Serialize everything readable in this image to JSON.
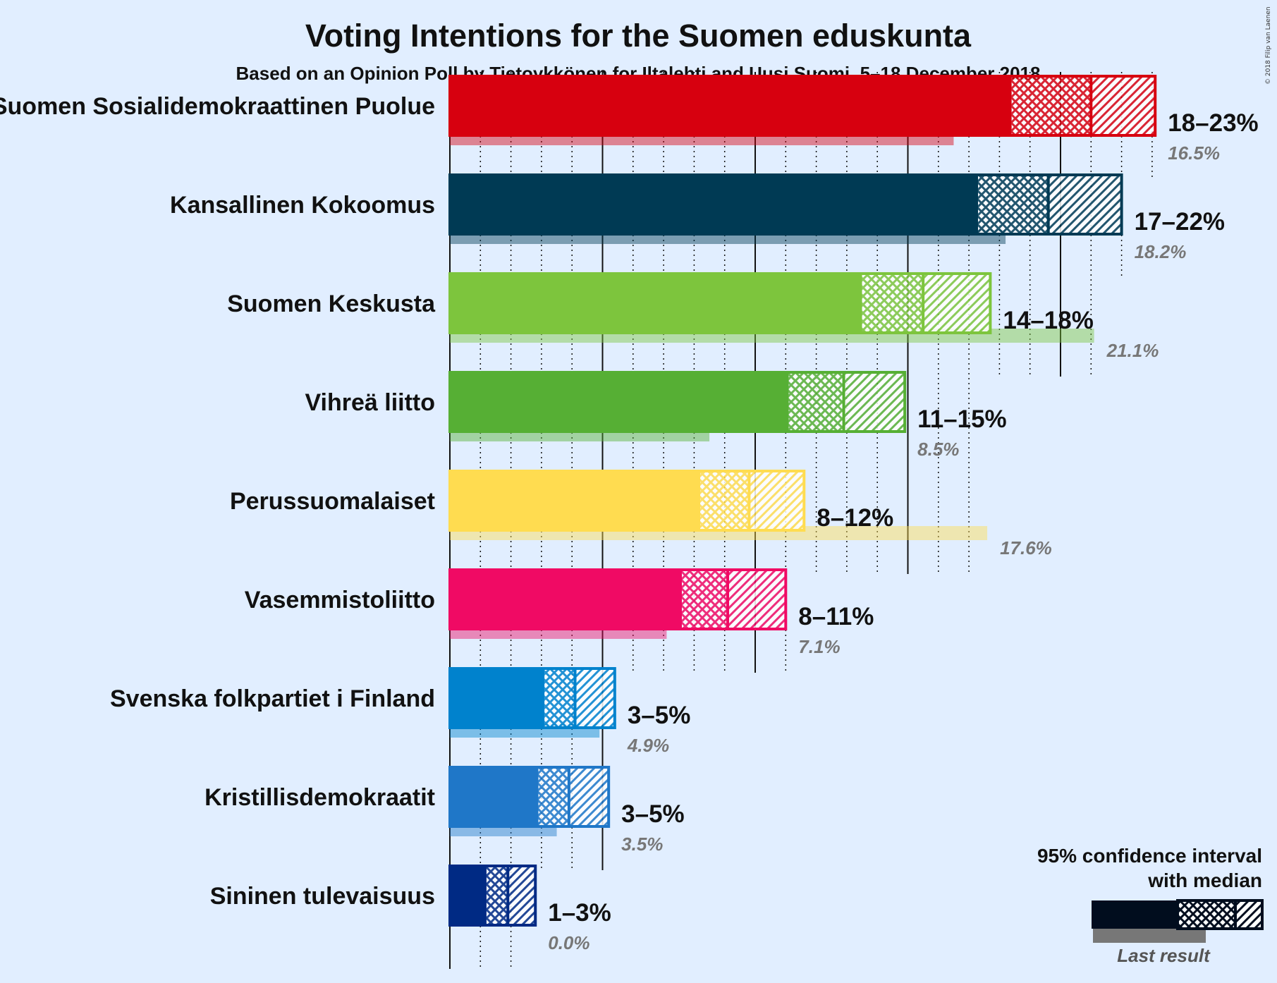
{
  "title": "Voting Intentions for the Suomen eduskunta",
  "subtitle": "Based on an Opinion Poll by Tietoykkönen for Iltalehti and Uusi Suomi, 5–18 December 2018",
  "copyright": "© 2018 Filip van Laenen",
  "legend": {
    "ci_line1": "95% confidence interval",
    "ci_line2": "with median",
    "last_result": "Last result"
  },
  "chart_data": {
    "type": "bar",
    "orientation": "horizontal",
    "unit": "%",
    "xlim": [
      0,
      24
    ],
    "grid": "vertical lines every 1% (dotted), solid every 5%",
    "legend_position": "bottom-right",
    "categories": [
      "Suomen Sosialidemokraattinen Puolue",
      "Kansallinen Kokoomus",
      "Suomen Keskusta",
      "Vihreä liitto",
      "Perussuomalaiset",
      "Vasemmistoliitto",
      "Svenska folkpartiet i Finland",
      "Kristillisdemokraatit",
      "Sininen tulevaisuus"
    ],
    "parties": [
      {
        "name": "Suomen Sosialidemokraattinen Puolue",
        "range_label": "18–23%",
        "last_label": "16.5%",
        "low": 18.4,
        "ci80_low": 20.6,
        "median": 21.0,
        "ci80_high": 23.0,
        "high": 23.1,
        "last": 16.5,
        "color": "#d7000f"
      },
      {
        "name": "Kansallinen Kokoomus",
        "range_label": "17–22%",
        "last_label": "18.2%",
        "low": 17.3,
        "ci80_low": 19.5,
        "median": 19.6,
        "ci80_high": 21.8,
        "high": 22.0,
        "last": 18.2,
        "color": "#003a54"
      },
      {
        "name": "Suomen Keskusta",
        "range_label": "14–18%",
        "last_label": "21.1%",
        "low": 13.5,
        "ci80_low": 15.3,
        "median": 15.5,
        "ci80_high": 17.6,
        "high": 17.7,
        "last": 21.1,
        "color": "#7dc53d"
      },
      {
        "name": "Vihreä liitto",
        "range_label": "11–15%",
        "last_label": "8.5%",
        "low": 11.1,
        "ci80_low": 12.8,
        "median": 12.9,
        "ci80_high": 14.8,
        "high": 14.9,
        "last": 8.5,
        "color": "#56af34"
      },
      {
        "name": "Perussuomalaiset",
        "range_label": "8–12%",
        "last_label": "17.6%",
        "low": 8.2,
        "ci80_low": 9.8,
        "median": 9.8,
        "ci80_high": 11.5,
        "high": 11.6,
        "last": 17.6,
        "color": "#ffdc50"
      },
      {
        "name": "Vasemmistoliitto",
        "range_label": "8–11%",
        "last_label": "7.1%",
        "low": 7.6,
        "ci80_low": 9.0,
        "median": 9.1,
        "ci80_high": 10.8,
        "high": 11.0,
        "last": 7.1,
        "color": "#f00a64"
      },
      {
        "name": "Svenska folkpartiet i Finland",
        "range_label": "3–5%",
        "last_label": "4.9%",
        "low": 3.1,
        "ci80_low": 4.0,
        "median": 4.1,
        "ci80_high": 5.3,
        "high": 5.4,
        "last": 4.9,
        "color": "#0082cd"
      },
      {
        "name": "Kristillisdemokraatit",
        "range_label": "3–5%",
        "last_label": "3.5%",
        "low": 2.9,
        "ci80_low": 3.9,
        "median": 3.9,
        "ci80_high": 5.2,
        "high": 5.2,
        "last": 3.5,
        "color": "#1f77c8"
      },
      {
        "name": "Sininen tulevaisuus",
        "range_label": "1–3%",
        "last_label": "0.0%",
        "low": 1.2,
        "ci80_low": 1.9,
        "median": 1.9,
        "ci80_high": 2.8,
        "high": 2.8,
        "last": 0.0,
        "color": "#002a84"
      }
    ]
  }
}
